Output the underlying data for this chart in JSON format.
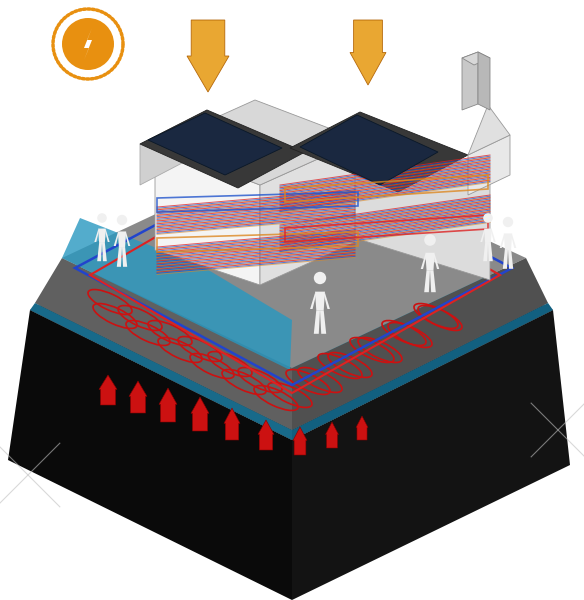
{
  "bg_color": "#ffffff",
  "dark_ground_top": "#1c1c1c",
  "dark_ground_left": "#0d0d0d",
  "dark_ground_right": "#141414",
  "water_top": "#1e8cb8",
  "water_left": "#186a8a",
  "water_right": "#126080",
  "water_bright_stripe": "#5ac8e8",
  "teal_left": "#1a7a9a",
  "teal_right": "#148090",
  "gray_platform_top": "#8a8a8a",
  "gray_platform_left": "#606060",
  "gray_platform_right": "#505050",
  "house_white": "#f2f2f2",
  "house_gray_light": "#e0e0e0",
  "house_gray_mid": "#cccccc",
  "roof_dark": "#3a3a3a",
  "roof_mid": "#555555",
  "solar_panel": "#1a2840",
  "orange_arrow": "#e8a020",
  "orange_sun": "#e89010",
  "red_arrow": "#cc1111",
  "pipe_red": "#dd2222",
  "pipe_blue": "#2255cc",
  "pipe_orange": "#dd8822",
  "coil_red": "#cc1111",
  "coil_blue": "#2244cc",
  "person_white": "#f0f0f0",
  "chimney_gray": "#b0b0b0",
  "cross_gray": "#c0c0c0"
}
